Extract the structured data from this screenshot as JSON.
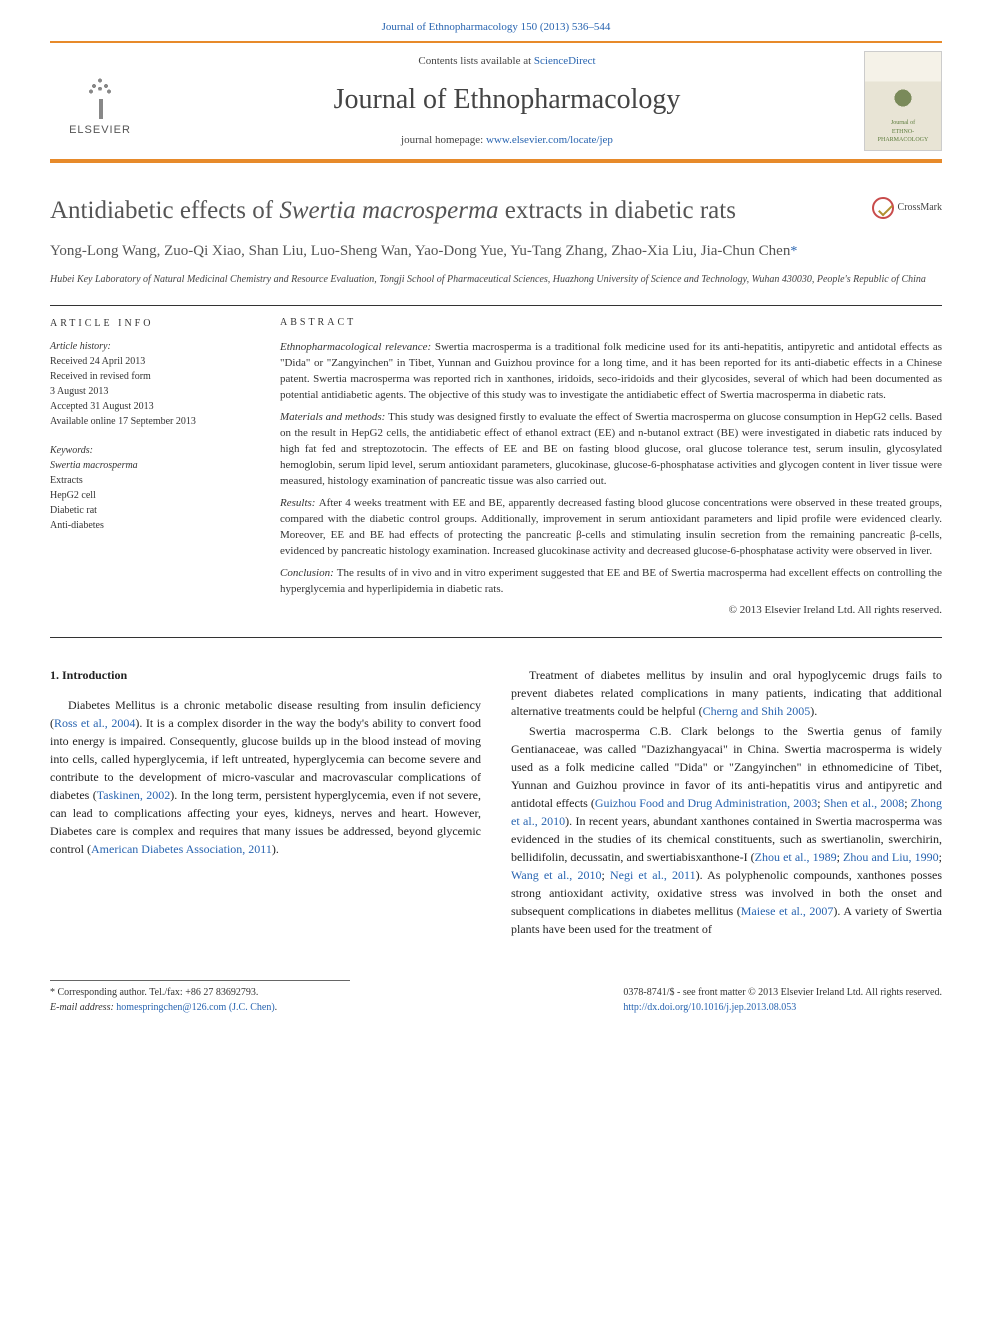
{
  "top_link": "Journal of Ethnopharmacology 150 (2013) 536–544",
  "header": {
    "contents_prefix": "Contents lists available at ",
    "contents_link": "ScienceDirect",
    "journal_name": "Journal of Ethnopharmacology",
    "homepage_prefix": "journal homepage: ",
    "homepage_link": "www.elsevier.com/locate/jep",
    "publisher_name": "ELSEVIER",
    "cover_text1": "Journal of",
    "cover_text2": "ETHNO-",
    "cover_text3": "PHARMACOLOGY"
  },
  "article": {
    "title_pre": "Antidiabetic effects of ",
    "title_em": "Swertia macrosperma",
    "title_post": " extracts in diabetic rats",
    "crossmark": "CrossMark",
    "authors": "Yong-Long Wang, Zuo-Qi Xiao, Shan Liu, Luo-Sheng Wan, Yao-Dong Yue, Yu-Tang Zhang, Zhao-Xia Liu, Jia-Chun Chen",
    "corr_mark": "*",
    "affiliation": "Hubei Key Laboratory of Natural Medicinal Chemistry and Resource Evaluation, Tongji School of Pharmaceutical Sciences, Huazhong University of Science and Technology, Wuhan 430030, People's Republic of China"
  },
  "info": {
    "heading": "article info",
    "history_label": "Article history:",
    "received": "Received 24 April 2013",
    "revised1": "Received in revised form",
    "revised2": "3 August 2013",
    "accepted": "Accepted 31 August 2013",
    "online": "Available online 17 September 2013",
    "keywords_label": "Keywords:",
    "keywords": [
      "Swertia macrosperma",
      "Extracts",
      "HepG2 cell",
      "Diabetic rat",
      "Anti-diabetes"
    ]
  },
  "abstract": {
    "heading": "abstract",
    "p1_label": "Ethnopharmacological relevance: ",
    "p1": "Swertia macrosperma is a traditional folk medicine used for its anti-hepatitis, antipyretic and antidotal effects as \"Dida\" or \"Zangyinchen\" in Tibet, Yunnan and Guizhou province for a long time, and it has been reported for its anti-diabetic effects in a Chinese patent. Swertia macrosperma was reported rich in xanthones, iridoids, seco-iridoids and their glycosides, several of which had been documented as potential antidiabetic agents. The objective of this study was to investigate the antidiabetic effect of Swertia macrosperma in diabetic rats.",
    "p2_label": "Materials and methods: ",
    "p2": "This study was designed firstly to evaluate the effect of Swertia macrosperma on glucose consumption in HepG2 cells. Based on the result in HepG2 cells, the antidiabetic effect of ethanol extract (EE) and n-butanol extract (BE) were investigated in diabetic rats induced by high fat fed and streptozotocin. The effects of EE and BE on fasting blood glucose, oral glucose tolerance test, serum insulin, glycosylated hemoglobin, serum lipid level, serum antioxidant parameters, glucokinase, glucose-6-phosphatase activities and glycogen content in liver tissue were measured, histology examination of pancreatic tissue was also carried out.",
    "p3_label": "Results: ",
    "p3": "After 4 weeks treatment with EE and BE, apparently decreased fasting blood glucose concentrations were observed in these treated groups, compared with the diabetic control groups. Additionally, improvement in serum antioxidant parameters and lipid profile were evidenced clearly. Moreover, EE and BE had effects of protecting the pancreatic β-cells and stimulating insulin secretion from the remaining pancreatic β-cells, evidenced by pancreatic histology examination. Increased glucokinase activity and decreased glucose-6-phosphatase activity were observed in liver.",
    "p4_label": "Conclusion: ",
    "p4": "The results of in vivo and in vitro experiment suggested that EE and BE of Swertia macrosperma had excellent effects on controlling the hyperglycemia and hyperlipidemia in diabetic rats.",
    "copyright": "© 2013 Elsevier Ireland Ltd. All rights reserved."
  },
  "body": {
    "intro_head": "1.  Introduction",
    "col1_p1a": "Diabetes Mellitus is a chronic metabolic disease resulting from insulin deficiency (",
    "col1_p1_ref1": "Ross et al., 2004",
    "col1_p1b": "). It is a complex disorder in the way the body's ability to convert food into energy is impaired. Consequently, glucose builds up in the blood instead of moving into cells, called hyperglycemia, if left untreated, hyperglycemia can become severe and contribute to the development of micro-vascular and macrovascular complications of diabetes (",
    "col1_p1_ref2": "Taskinen, 2002",
    "col1_p1c": "). In the long term, persistent hyperglycemia, even if not severe, can lead to complications affecting your eyes, kidneys, nerves and heart. However, Diabetes care is complex and requires that many issues be addressed, beyond glycemic control (",
    "col1_p1_ref3": "American Diabetes Association, 2011",
    "col1_p1d": ").",
    "col2_p1a": "Treatment of diabetes mellitus by insulin and oral hypoglycemic drugs fails to prevent diabetes related complications in many patients, indicating that additional alternative treatments could be helpful (",
    "col2_p1_ref1": "Cherng and Shih 2005",
    "col2_p1b": ").",
    "col2_p2a": "Swertia macrosperma C.B. Clark belongs to the Swertia genus of family Gentianaceae, was called \"Dazizhangyacai\" in China. Swertia macrosperma is widely used as a folk medicine called \"Dida\" or \"Zangyinchen\" in ethnomedicine of Tibet, Yunnan and Guizhou province in favor of its anti-hepatitis virus and antipyretic and antidotal effects (",
    "col2_p2_ref1": "Guizhou Food and Drug Administration, 2003",
    "col2_p2b": "; ",
    "col2_p2_ref2": "Shen et al., 2008",
    "col2_p2c": "; ",
    "col2_p2_ref3": "Zhong et al., 2010",
    "col2_p2d": "). In recent years, abundant xanthones contained in Swertia macrosperma was evidenced in the studies of its chemical constituents, such as swertianolin, swerchirin, bellidifolin, decussatin, and swertiabisxanthone-I (",
    "col2_p2_ref4": "Zhou et al., 1989",
    "col2_p2e": "; ",
    "col2_p2_ref5": "Zhou and Liu, 1990",
    "col2_p2f": "; ",
    "col2_p2_ref6": "Wang et al., 2010",
    "col2_p2g": "; ",
    "col2_p2_ref7": "Negi et al., 2011",
    "col2_p2h": "). As polyphenolic compounds, xanthones posses strong antioxidant activity, oxidative stress was involved in both the onset and subsequent complications in diabetes mellitus (",
    "col2_p2_ref8": "Maiese et al., 2007",
    "col2_p2i": "). A variety of Swertia plants have been used for the treatment of"
  },
  "footer": {
    "corr_label": "* Corresponding author. Tel./fax: +86 27 83692793.",
    "email_label": "E-mail address: ",
    "email": "homespringchen@126.com (J.C. Chen)",
    "email_suffix": ".",
    "issn": "0378-8741/$ - see front matter © 2013 Elsevier Ireland Ltd. All rights reserved.",
    "doi": "http://dx.doi.org/10.1016/j.jep.2013.08.053"
  },
  "colors": {
    "accent": "#e78a2a",
    "link": "#2864b0",
    "text": "#222222",
    "muted": "#555555"
  }
}
